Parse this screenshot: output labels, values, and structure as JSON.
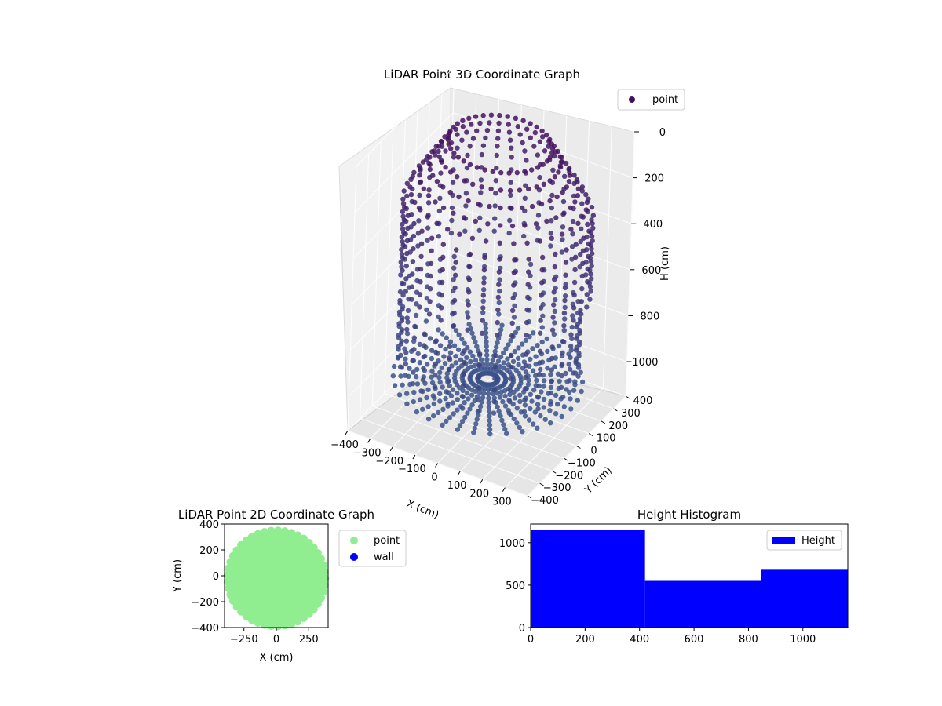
{
  "chart_data": [
    {
      "type": "scatter3d",
      "title": "LiDAR Point 3D Coordinate Graph",
      "xlabel": "X (cm)",
      "ylabel": "Y (cm)",
      "zlabel": "H (cm)",
      "xlim": [
        -400,
        400
      ],
      "ylim": [
        -400,
        400
      ],
      "zlim": [
        0,
        1150
      ],
      "z_inverted": true,
      "x_ticks": [
        "−400",
        "−300",
        "−200",
        "−100",
        "0",
        "100",
        "200",
        "300"
      ],
      "y_ticks": [
        "−400",
        "−300",
        "−200",
        "−100",
        "0",
        "100",
        "200",
        "300",
        "400"
      ],
      "z_ticks": [
        "0",
        "200",
        "400",
        "600",
        "800",
        "1000"
      ],
      "legend": {
        "entries": [
          "point"
        ],
        "placement": "upper-right"
      },
      "series": [
        {
          "name": "point",
          "color_top": "#44105e",
          "color_bottom": "#3b528b",
          "description_cylinder_radius": 380,
          "floor_height": 1000,
          "top_height": 0
        }
      ],
      "grid": true
    },
    {
      "type": "scatter",
      "title": "LiDAR Point 2D Coordinate Graph",
      "xlabel": "X (cm)",
      "ylabel": "Y (cm)",
      "xlim": [
        -400,
        400
      ],
      "ylim": [
        -400,
        400
      ],
      "x_ticks": [
        "−250",
        "0",
        "250"
      ],
      "y_ticks": [
        "400",
        "200",
        "0",
        "−200",
        "−400"
      ],
      "legend": {
        "entries": [
          "point",
          "wall"
        ],
        "placement": "outside-right"
      },
      "series": [
        {
          "name": "point",
          "color": "#90ee90"
        },
        {
          "name": "wall",
          "color": "#0000ff"
        }
      ]
    },
    {
      "type": "bar",
      "title": "Height Histogram",
      "legend": {
        "entries": [
          "Height"
        ],
        "placement": "upper-right"
      },
      "bins": [
        {
          "start": 0,
          "end": 420,
          "count": 1150
        },
        {
          "start": 420,
          "end": 845,
          "count": 550
        },
        {
          "start": 845,
          "end": 1165,
          "count": 690
        }
      ],
      "xlim": [
        0,
        1165
      ],
      "ylim": [
        0,
        1220
      ],
      "x_ticks": [
        "0",
        "200",
        "400",
        "600",
        "800",
        "1000"
      ],
      "y_ticks": [
        "0",
        "500",
        "1000"
      ],
      "series": [
        {
          "name": "Height",
          "color": "#0000ff"
        }
      ]
    }
  ]
}
